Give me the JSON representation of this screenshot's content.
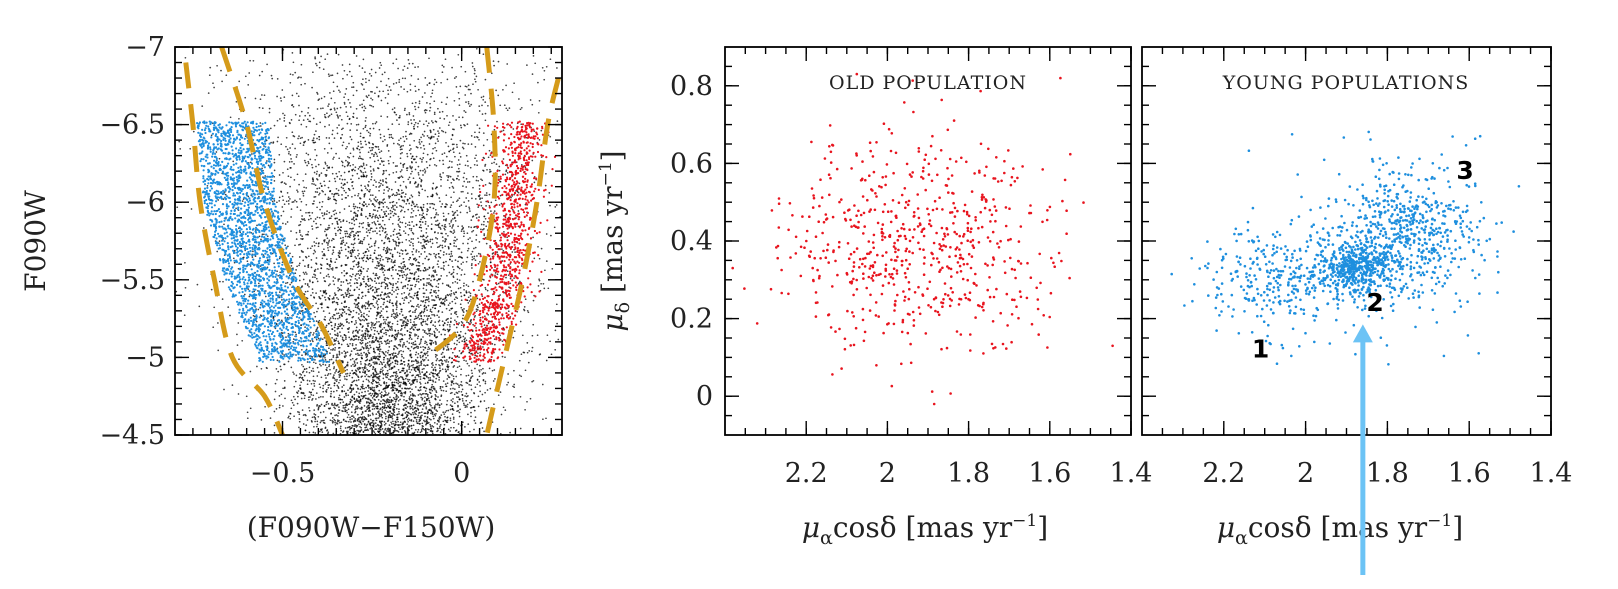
{
  "chart_data": [
    {
      "type": "scatter",
      "panel": "cmd",
      "xlabel": "(F090W−F150W)",
      "ylabel": "F090W",
      "xlim": [
        -0.8,
        0.28
      ],
      "ylim": [
        -4.5,
        -7
      ],
      "y_inverted": true,
      "xticks": [
        -0.5,
        0
      ],
      "xtick_labels": [
        "−0.5",
        "0"
      ],
      "yticks": [
        -7,
        -6.5,
        -6,
        -5.5,
        -5,
        -4.5
      ],
      "ytick_labels": [
        "−7",
        "−6.5",
        "−6",
        "−5.5",
        "−5",
        "−4.5"
      ],
      "series": [
        {
          "color": "#000000",
          "kind": "field",
          "n_points": 6500
        },
        {
          "color": "#1e8fde",
          "kind": "blue-selection",
          "n_points": 2200,
          "ridge": [
            [
              -0.64,
              -6.5
            ],
            [
              -0.62,
              -6.0
            ],
            [
              -0.56,
              -5.5
            ],
            [
              -0.47,
              -5.0
            ]
          ]
        },
        {
          "color": "#e8141e",
          "kind": "red-selection",
          "n_points": 1000,
          "ridge": [
            [
              0.17,
              -6.5
            ],
            [
              0.15,
              -6.0
            ],
            [
              0.12,
              -5.5
            ],
            [
              0.05,
              -5.0
            ]
          ]
        }
      ],
      "boundaries": {
        "color": "#d59b1a",
        "blue_outer": [
          [
            -0.77,
            -6.9
          ],
          [
            -0.75,
            -6.5
          ],
          [
            -0.73,
            -6.0
          ],
          [
            -0.69,
            -5.5
          ],
          [
            -0.64,
            -5.0
          ],
          [
            -0.55,
            -4.75
          ],
          [
            -0.5,
            -4.5
          ]
        ],
        "blue_inner": [
          [
            -0.67,
            -7.0
          ],
          [
            -0.6,
            -6.5
          ],
          [
            -0.55,
            -6.0
          ],
          [
            -0.47,
            -5.5
          ],
          [
            -0.39,
            -5.2
          ],
          [
            -0.33,
            -4.9
          ]
        ],
        "red_inner": [
          [
            0.07,
            -7.0
          ],
          [
            0.09,
            -6.5
          ],
          [
            0.09,
            -6.0
          ],
          [
            0.05,
            -5.5
          ],
          [
            0.0,
            -5.2
          ],
          [
            -0.1,
            -5.0
          ]
        ],
        "red_outer": [
          [
            0.27,
            -6.8
          ],
          [
            0.24,
            -6.5
          ],
          [
            0.21,
            -6.0
          ],
          [
            0.17,
            -5.5
          ],
          [
            0.12,
            -5.0
          ],
          [
            0.07,
            -4.5
          ]
        ]
      }
    },
    {
      "type": "scatter",
      "panel": "old",
      "title": "OLD POPULATION",
      "xlabel": "μαcosδ [mas yr⁻¹]",
      "ylabel": "μδ [mas yr⁻¹]",
      "xlim": [
        2.4,
        1.4
      ],
      "ylim": [
        -0.1,
        0.9
      ],
      "x_inverted": true,
      "xticks": [
        2.2,
        2,
        1.8,
        1.6,
        1.4
      ],
      "xtick_labels": [
        "2.2",
        "2",
        "1.8",
        "1.6",
        "1.4"
      ],
      "yticks": [
        0,
        0.2,
        0.4,
        0.6,
        0.8
      ],
      "ytick_labels": [
        "0",
        "0.2",
        "0.4",
        "0.6",
        "0.8"
      ],
      "series": [
        {
          "color": "#e8141e",
          "n_points": 650,
          "center": [
            1.94,
            0.39
          ],
          "spread": [
            0.17,
            0.135
          ]
        }
      ]
    },
    {
      "type": "scatter",
      "panel": "young",
      "title": "YOUNG POPULATIONS",
      "xlabel": "μαcosδ [mas yr⁻¹]",
      "xlim": [
        2.4,
        1.4
      ],
      "ylim": [
        -0.1,
        0.9
      ],
      "x_inverted": true,
      "xticks": [
        2.2,
        2,
        1.8,
        1.6,
        1.4
      ],
      "xtick_labels": [
        "2.2",
        "2",
        "1.8",
        "1.6",
        "1.4"
      ],
      "yticks": [
        0,
        0.2,
        0.4,
        0.6,
        0.8
      ],
      "series": [
        {
          "color": "#1e8fde",
          "n_points": 1400,
          "clumps": [
            {
              "center": [
                2.07,
                0.3
              ],
              "spread": [
                0.09,
                0.07
              ],
              "weight": 0.22
            },
            {
              "center": [
                1.88,
                0.33
              ],
              "spread": [
                0.045,
                0.035
              ],
              "weight": 0.33
            },
            {
              "center": [
                1.76,
                0.42
              ],
              "spread": [
                0.09,
                0.085
              ],
              "weight": 0.45
            }
          ]
        }
      ],
      "annotations": [
        {
          "text": "1",
          "x": 2.11,
          "y": 0.1
        },
        {
          "text": "2",
          "x": 1.83,
          "y": 0.22
        },
        {
          "text": "3",
          "x": 1.61,
          "y": 0.56
        }
      ],
      "arrow": {
        "color": "#6cc3f5",
        "points_to": [
          1.86,
          0.18
        ]
      }
    }
  ]
}
